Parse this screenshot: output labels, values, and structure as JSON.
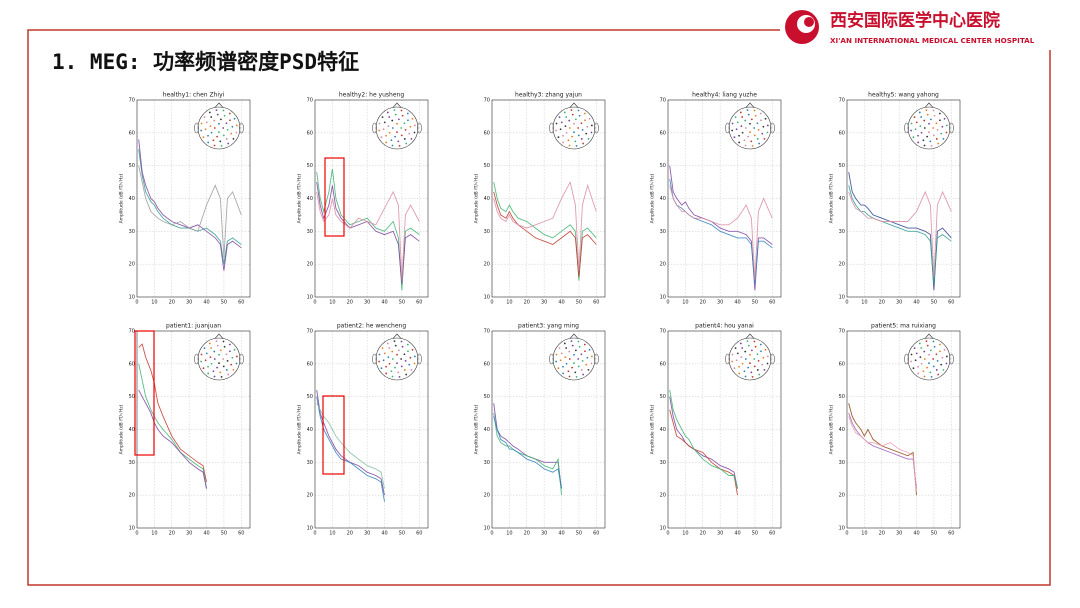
{
  "slide": {
    "title": "1. MEG: 功率频谱密度PSD特征",
    "logo_cn": "西安国际医学中心医院",
    "logo_en": "XI'AN INTERNATIONAL MEDICAL CENTER HOSPITAL"
  },
  "chart_data": [
    {
      "type": "line",
      "title": "healthy1: chen Zhiyi",
      "ylabel": "Amplitude (dB fT/√Hz)",
      "xlim": [
        0,
        65
      ],
      "ylim": [
        10,
        70
      ],
      "xticks": [
        0,
        10,
        20,
        30,
        40,
        50,
        60
      ],
      "yticks": [
        10,
        20,
        30,
        40,
        50,
        60,
        70
      ],
      "grid": true,
      "x": [
        1,
        3,
        5,
        8,
        10,
        12,
        15,
        20,
        25,
        30,
        35,
        40,
        45,
        48,
        50,
        52,
        55,
        60
      ],
      "series": [
        {
          "color": "#2a9d8f",
          "values": [
            55,
            47,
            42,
            39,
            38,
            36,
            34,
            32,
            31,
            31,
            30,
            31,
            29,
            27,
            20,
            27,
            28,
            26
          ]
        },
        {
          "color": "#7b3fa0",
          "values": [
            58,
            48,
            44,
            40,
            39,
            37,
            35,
            33,
            32,
            31,
            32,
            30,
            28,
            26,
            18,
            26,
            27,
            25
          ]
        },
        {
          "color": "#999999",
          "values": [
            50,
            45,
            40,
            36,
            35,
            34,
            33,
            32,
            33,
            31,
            30,
            38,
            44,
            40,
            22,
            40,
            42,
            35
          ]
        }
      ]
    },
    {
      "type": "line",
      "title": "healthy2: he yusheng",
      "ylabel": "Amplitude (dB fT/√Hz)",
      "xlim": [
        0,
        65
      ],
      "ylim": [
        10,
        70
      ],
      "xticks": [
        0,
        10,
        20,
        30,
        40,
        50,
        60
      ],
      "yticks": [
        10,
        20,
        30,
        40,
        50,
        60,
        70
      ],
      "grid": true,
      "x": [
        1,
        3,
        5,
        8,
        10,
        12,
        15,
        20,
        25,
        30,
        35,
        40,
        45,
        48,
        50,
        52,
        55,
        60
      ],
      "series": [
        {
          "color": "#3cb371",
          "values": [
            48,
            40,
            36,
            42,
            49,
            40,
            35,
            32,
            33,
            34,
            31,
            30,
            33,
            28,
            12,
            30,
            31,
            29
          ]
        },
        {
          "color": "#7b3fa0",
          "values": [
            45,
            38,
            34,
            38,
            44,
            37,
            34,
            31,
            32,
            33,
            30,
            29,
            30,
            26,
            14,
            28,
            29,
            27
          ]
        },
        {
          "color": "#d98aa0",
          "values": [
            42,
            36,
            33,
            35,
            40,
            35,
            33,
            31,
            34,
            33,
            32,
            37,
            42,
            38,
            15,
            35,
            38,
            33
          ]
        }
      ]
    },
    {
      "type": "line",
      "title": "healthy3: zhang yajun",
      "ylabel": "Amplitude (dB fT/√Hz)",
      "xlim": [
        0,
        65
      ],
      "ylim": [
        10,
        70
      ],
      "xticks": [
        0,
        10,
        20,
        30,
        40,
        50,
        60
      ],
      "yticks": [
        10,
        20,
        30,
        40,
        50,
        60,
        70
      ],
      "grid": true,
      "x": [
        1,
        3,
        5,
        8,
        10,
        12,
        15,
        20,
        25,
        30,
        35,
        40,
        45,
        48,
        50,
        52,
        55,
        60
      ],
      "series": [
        {
          "color": "#3cb371",
          "values": [
            45,
            40,
            37,
            36,
            38,
            36,
            34,
            33,
            31,
            29,
            28,
            30,
            32,
            30,
            15,
            30,
            31,
            28
          ]
        },
        {
          "color": "#c0392b",
          "values": [
            42,
            38,
            35,
            34,
            36,
            34,
            32,
            30,
            28,
            27,
            26,
            28,
            30,
            28,
            16,
            28,
            29,
            26
          ]
        },
        {
          "color": "#d98aa0",
          "values": [
            40,
            36,
            34,
            33,
            35,
            33,
            32,
            31,
            32,
            33,
            34,
            40,
            45,
            38,
            18,
            38,
            44,
            36
          ]
        }
      ]
    },
    {
      "type": "line",
      "title": "healthy4: liang yuzhe",
      "ylabel": "Amplitude (dB fT/√Hz)",
      "xlim": [
        0,
        65
      ],
      "ylim": [
        10,
        70
      ],
      "xticks": [
        0,
        10,
        20,
        30,
        40,
        50,
        60
      ],
      "yticks": [
        10,
        20,
        30,
        40,
        50,
        60,
        70
      ],
      "grid": true,
      "x": [
        1,
        3,
        5,
        8,
        10,
        12,
        15,
        20,
        25,
        30,
        35,
        40,
        45,
        48,
        50,
        52,
        55,
        60
      ],
      "series": [
        {
          "color": "#7b3fa0",
          "values": [
            50,
            42,
            40,
            38,
            39,
            37,
            35,
            34,
            33,
            31,
            30,
            30,
            29,
            27,
            12,
            28,
            28,
            26
          ]
        },
        {
          "color": "#2c7fb8",
          "values": [
            46,
            40,
            38,
            37,
            36,
            35,
            34,
            33,
            32,
            30,
            29,
            28,
            28,
            26,
            14,
            27,
            27,
            25
          ]
        },
        {
          "color": "#d98aa0",
          "values": [
            44,
            40,
            38,
            36,
            36,
            35,
            34,
            34,
            33,
            32,
            32,
            34,
            38,
            34,
            15,
            36,
            40,
            34
          ]
        }
      ]
    },
    {
      "type": "line",
      "title": "healthy5: wang yahong",
      "ylabel": "Amplitude (dB fT/√Hz)",
      "xlim": [
        0,
        65
      ],
      "ylim": [
        10,
        70
      ],
      "xticks": [
        0,
        10,
        20,
        30,
        40,
        50,
        60
      ],
      "yticks": [
        10,
        20,
        30,
        40,
        50,
        60,
        70
      ],
      "grid": true,
      "x": [
        1,
        3,
        5,
        8,
        10,
        12,
        15,
        20,
        25,
        30,
        35,
        40,
        45,
        48,
        50,
        52,
        55,
        60
      ],
      "series": [
        {
          "color": "#2c3e8f",
          "values": [
            48,
            42,
            40,
            38,
            38,
            37,
            35,
            34,
            33,
            32,
            31,
            31,
            30,
            29,
            12,
            30,
            31,
            28
          ]
        },
        {
          "color": "#2a9d8f",
          "values": [
            44,
            40,
            38,
            36,
            36,
            35,
            34,
            33,
            32,
            31,
            30,
            30,
            29,
            27,
            14,
            28,
            29,
            27
          ]
        },
        {
          "color": "#d98aa0",
          "values": [
            42,
            39,
            37,
            36,
            35,
            34,
            34,
            33,
            33,
            33,
            33,
            36,
            42,
            38,
            16,
            38,
            42,
            36
          ]
        }
      ]
    },
    {
      "type": "line",
      "title": "patient1:   juanjuan",
      "ylabel": "Amplitude (dB fT/√Hz)",
      "xlim": [
        0,
        65
      ],
      "ylim": [
        10,
        70
      ],
      "xticks": [
        0,
        10,
        20,
        30,
        40,
        50,
        60
      ],
      "yticks": [
        10,
        20,
        30,
        40,
        50,
        60,
        70
      ],
      "grid": true,
      "x": [
        1,
        3,
        5,
        8,
        10,
        12,
        15,
        20,
        25,
        30,
        35,
        38,
        40
      ],
      "series": [
        {
          "color": "#c0392b",
          "values": [
            65,
            66,
            62,
            58,
            54,
            48,
            44,
            38,
            34,
            32,
            30,
            29,
            24
          ]
        },
        {
          "color": "#3cb371",
          "values": [
            60,
            55,
            50,
            46,
            44,
            42,
            40,
            37,
            33,
            31,
            29,
            28,
            22
          ]
        },
        {
          "color": "#7b3fa0",
          "values": [
            52,
            50,
            48,
            45,
            42,
            40,
            38,
            36,
            33,
            30,
            28,
            27,
            22
          ]
        }
      ]
    },
    {
      "type": "line",
      "title": "patient2: he wencheng",
      "ylabel": "Amplitude (dB fT/√Hz)",
      "xlim": [
        0,
        65
      ],
      "ylim": [
        10,
        70
      ],
      "xticks": [
        0,
        10,
        20,
        30,
        40,
        50,
        60
      ],
      "yticks": [
        10,
        20,
        30,
        40,
        50,
        60,
        70
      ],
      "grid": true,
      "x": [
        1,
        3,
        5,
        8,
        10,
        12,
        15,
        20,
        25,
        30,
        35,
        38,
        40
      ],
      "series": [
        {
          "color": "#7b3fa0",
          "values": [
            52,
            45,
            42,
            38,
            36,
            34,
            32,
            30,
            29,
            27,
            26,
            25,
            20
          ]
        },
        {
          "color": "#2c7fb8",
          "values": [
            50,
            44,
            40,
            37,
            35,
            33,
            31,
            30,
            28,
            26,
            25,
            24,
            18
          ]
        },
        {
          "color": "#7fbf9f",
          "values": [
            48,
            46,
            44,
            42,
            40,
            38,
            36,
            33,
            31,
            29,
            28,
            27,
            22
          ]
        }
      ]
    },
    {
      "type": "line",
      "title": "patient3: yang ming",
      "ylabel": "Amplitude (dB fT/√Hz)",
      "xlim": [
        0,
        65
      ],
      "ylim": [
        10,
        70
      ],
      "xticks": [
        0,
        10,
        20,
        30,
        40,
        50,
        60
      ],
      "yticks": [
        10,
        20,
        30,
        40,
        50,
        60,
        70
      ],
      "grid": true,
      "x": [
        1,
        3,
        5,
        8,
        10,
        12,
        15,
        20,
        25,
        30,
        35,
        38,
        40
      ],
      "series": [
        {
          "color": "#7b3fa0",
          "values": [
            48,
            40,
            38,
            37,
            36,
            35,
            34,
            32,
            31,
            30,
            30,
            30,
            22
          ]
        },
        {
          "color": "#3cb371",
          "values": [
            45,
            38,
            36,
            35,
            35,
            34,
            33,
            32,
            31,
            29,
            28,
            31,
            20
          ]
        },
        {
          "color": "#2c7fb8",
          "values": [
            44,
            40,
            37,
            36,
            34,
            34,
            33,
            31,
            30,
            28,
            27,
            28,
            22
          ]
        }
      ]
    },
    {
      "type": "line",
      "title": "patient4: hou yanai",
      "ylabel": "Amplitude (dB fT/√Hz)",
      "xlim": [
        0,
        65
      ],
      "ylim": [
        10,
        70
      ],
      "xticks": [
        0,
        10,
        20,
        30,
        40,
        50,
        60
      ],
      "yticks": [
        10,
        20,
        30,
        40,
        50,
        60,
        70
      ],
      "grid": true,
      "x": [
        1,
        3,
        5,
        8,
        10,
        12,
        15,
        20,
        25,
        30,
        35,
        38,
        40
      ],
      "series": [
        {
          "color": "#7b3fa0",
          "values": [
            50,
            44,
            40,
            38,
            36,
            35,
            34,
            32,
            31,
            29,
            28,
            27,
            22
          ]
        },
        {
          "color": "#c0392b",
          "values": [
            46,
            42,
            38,
            37,
            36,
            35,
            34,
            33,
            30,
            28,
            27,
            26,
            20
          ]
        },
        {
          "color": "#3cb371",
          "values": [
            52,
            46,
            43,
            40,
            38,
            37,
            34,
            31,
            29,
            28,
            26,
            26,
            22
          ]
        }
      ]
    },
    {
      "type": "line",
      "title": "patient5: ma ruixiang",
      "ylabel": "Amplitude (dB fT/√Hz)",
      "xlim": [
        0,
        65
      ],
      "ylim": [
        10,
        70
      ],
      "xticks": [
        0,
        10,
        20,
        30,
        40,
        50,
        60
      ],
      "yticks": [
        10,
        20,
        30,
        40,
        50,
        60,
        70
      ],
      "grid": true,
      "x": [
        1,
        3,
        5,
        8,
        10,
        12,
        15,
        20,
        25,
        30,
        35,
        38,
        40
      ],
      "series": [
        {
          "color": "#8b4513",
          "values": [
            48,
            44,
            42,
            40,
            38,
            40,
            37,
            35,
            34,
            33,
            32,
            33,
            20
          ]
        },
        {
          "color": "#9b59b6",
          "values": [
            45,
            42,
            40,
            38,
            37,
            36,
            35,
            34,
            33,
            32,
            31,
            31,
            22
          ]
        },
        {
          "color": "#e8a0b0",
          "values": [
            44,
            41,
            39,
            38,
            37,
            36,
            36,
            35,
            36,
            34,
            33,
            32,
            21
          ]
        }
      ]
    }
  ]
}
